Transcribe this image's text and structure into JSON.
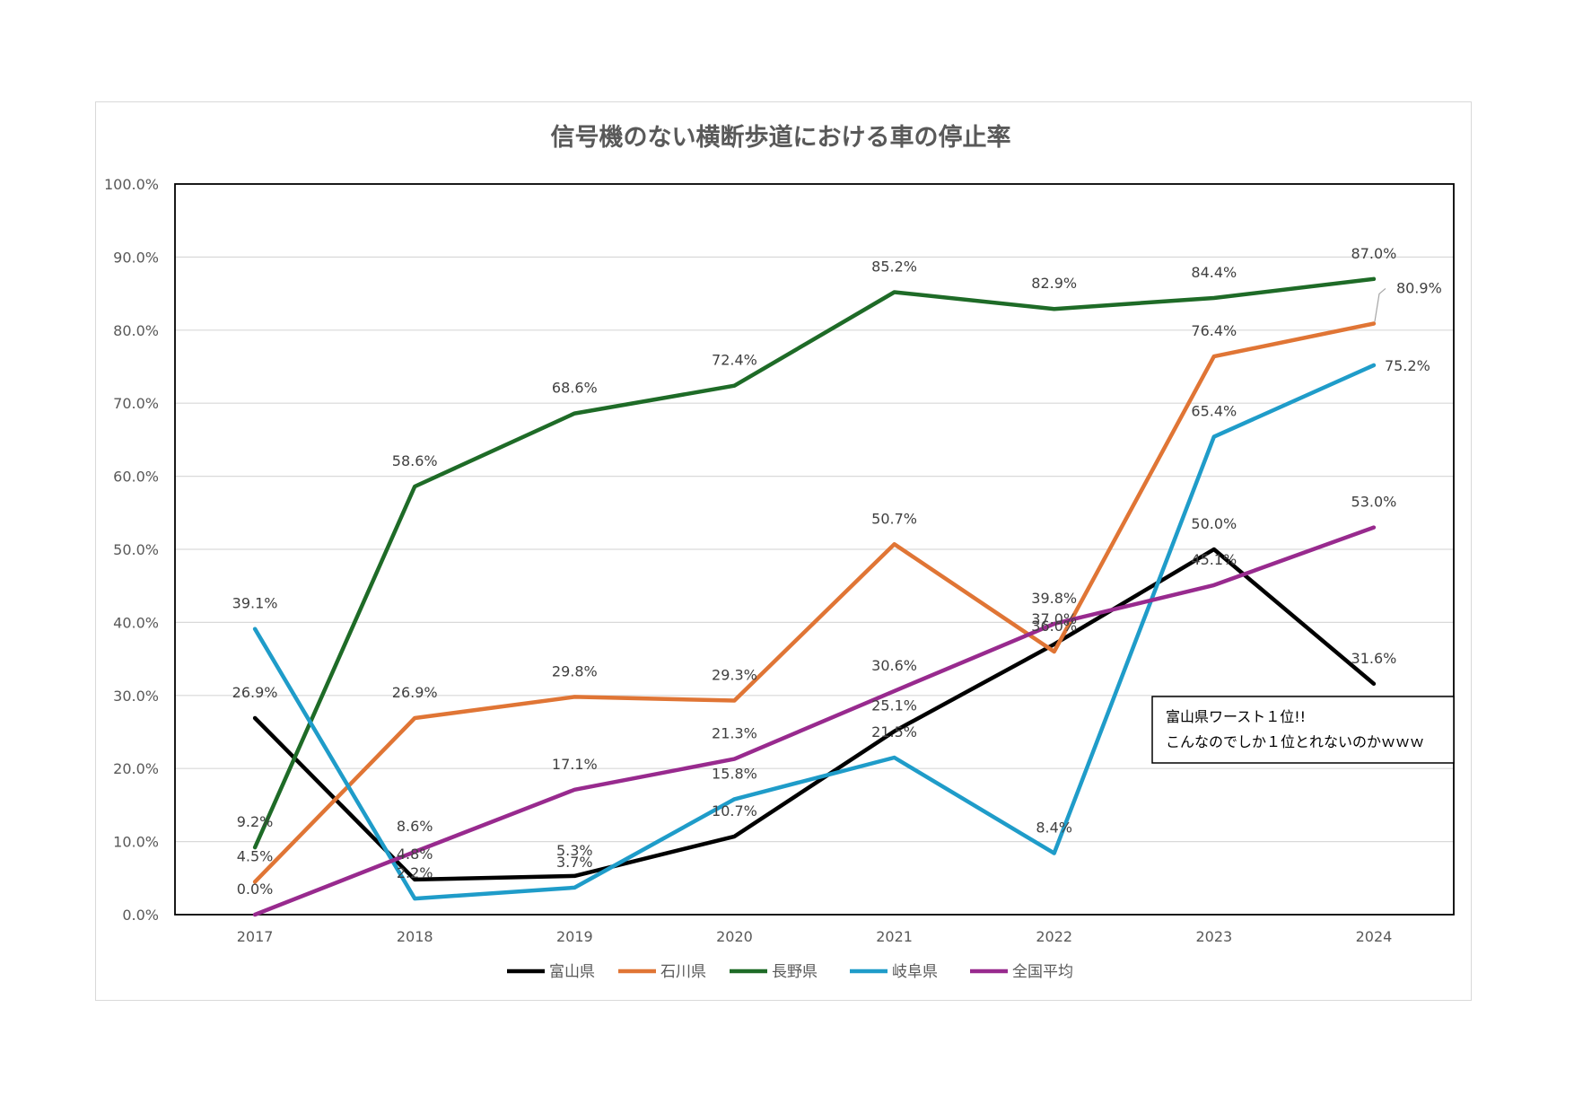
{
  "chart_data": {
    "type": "line",
    "title": "信号機のない横断歩道における車の停止率",
    "xlabel": "",
    "ylabel": "",
    "categories": [
      "2017",
      "2018",
      "2019",
      "2020",
      "2021",
      "2022",
      "2023",
      "2024"
    ],
    "ylim": [
      0,
      100
    ],
    "y_ticks": [
      "0.0%",
      "10.0%",
      "20.0%",
      "30.0%",
      "40.0%",
      "50.0%",
      "60.0%",
      "70.0%",
      "80.0%",
      "90.0%",
      "100.0%"
    ],
    "grid": true,
    "legend_position": "bottom",
    "series": [
      {
        "name": "富山県",
        "color": "#000000",
        "values": [
          26.9,
          4.8,
          5.3,
          10.7,
          25.1,
          37.0,
          50.0,
          31.6
        ],
        "labels": [
          "26.9%",
          "4.8%",
          "5.3%",
          "10.7%",
          "25.1%",
          "37.0%",
          "50.0%",
          "31.6%"
        ]
      },
      {
        "name": "石川県",
        "color": "#E07535",
        "values": [
          4.5,
          26.9,
          29.8,
          29.3,
          50.7,
          36.0,
          76.4,
          80.9
        ],
        "labels": [
          "4.5%",
          "26.9%",
          "29.8%",
          "29.3%",
          "50.7%",
          "36.0%",
          "76.4%",
          "80.9%"
        ]
      },
      {
        "name": "長野県",
        "color": "#1E6B27",
        "values": [
          9.2,
          58.6,
          68.6,
          72.4,
          85.2,
          82.9,
          84.4,
          87.0
        ],
        "labels": [
          "9.2%",
          "58.6%",
          "68.6%",
          "72.4%",
          "85.2%",
          "82.9%",
          "84.4%",
          "87.0%"
        ]
      },
      {
        "name": "岐阜県",
        "color": "#1F9CC9",
        "values": [
          39.1,
          2.2,
          3.7,
          15.8,
          21.5,
          8.4,
          65.4,
          75.2
        ],
        "labels": [
          "39.1%",
          "2.2%",
          "3.7%",
          "15.8%",
          "21.5%",
          "8.4%",
          "65.4%",
          "75.2%"
        ]
      },
      {
        "name": "全国平均",
        "color": "#982A8E",
        "values": [
          0.0,
          8.6,
          17.1,
          21.3,
          30.6,
          39.8,
          45.1,
          53.0
        ],
        "labels": [
          "0.0%",
          "8.6%",
          "17.1%",
          "21.3%",
          "30.6%",
          "39.8%",
          "45.1%",
          "53.0%"
        ]
      }
    ],
    "annotation": {
      "lines": [
        "富山県ワースト１位!!",
        "こんなのでしか１位とれないのかｗｗｗ"
      ]
    }
  }
}
